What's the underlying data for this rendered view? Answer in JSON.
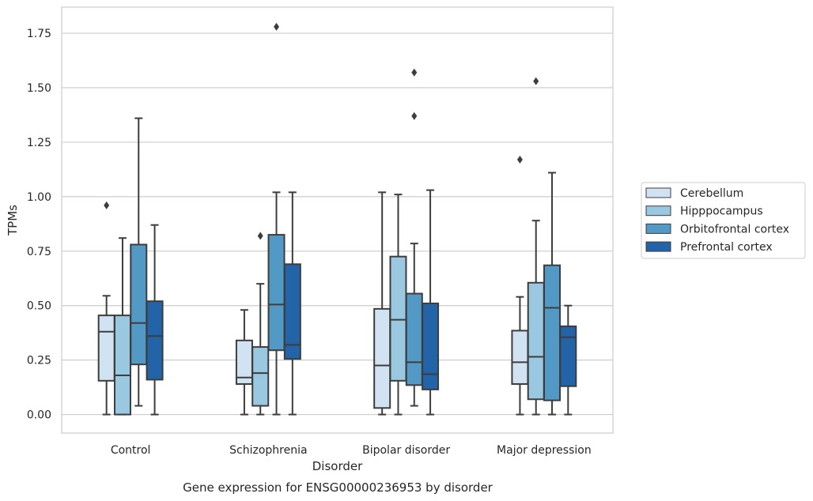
{
  "chart_data": {
    "type": "boxplot",
    "title": "",
    "caption": "Gene expression for ENSG00000236953 by disorder",
    "xlabel": "Disorder",
    "ylabel": "TPMs",
    "ylim": [
      -0.085,
      1.87
    ],
    "yticks": [
      0.0,
      0.25,
      0.5,
      0.75,
      1.0,
      1.25,
      1.5,
      1.75
    ],
    "ytick_labels": [
      "0.00",
      "0.25",
      "0.50",
      "0.75",
      "1.00",
      "1.25",
      "1.50",
      "1.75"
    ],
    "grid": "horizontal",
    "legend_position": "right",
    "categories": [
      "Control",
      "Schizophrenia",
      "Bipolar disorder",
      "Major depression"
    ],
    "series": [
      {
        "name": "Cerebellum",
        "color": "#d1e2f2",
        "boxes": [
          {
            "whislo": 0.0,
            "q1": 0.155,
            "med": 0.38,
            "q3": 0.455,
            "whishi": 0.545,
            "fliers": [
              0.96
            ]
          },
          {
            "whislo": 0.0,
            "q1": 0.14,
            "med": 0.17,
            "q3": 0.34,
            "whishi": 0.48,
            "fliers": []
          },
          {
            "whislo": 0.0,
            "q1": 0.03,
            "med": 0.225,
            "q3": 0.485,
            "whishi": 1.02,
            "fliers": []
          },
          {
            "whislo": 0.0,
            "q1": 0.14,
            "med": 0.24,
            "q3": 0.385,
            "whishi": 0.54,
            "fliers": [
              1.17
            ]
          }
        ]
      },
      {
        "name": "Hipppocampus",
        "color": "#9ac8e1",
        "boxes": [
          {
            "whislo": 0.0,
            "q1": 0.0,
            "med": 0.18,
            "q3": 0.455,
            "whishi": 0.81,
            "fliers": []
          },
          {
            "whislo": 0.0,
            "q1": 0.04,
            "med": 0.19,
            "q3": 0.31,
            "whishi": 0.6,
            "fliers": [
              0.82
            ]
          },
          {
            "whislo": 0.0,
            "q1": 0.155,
            "med": 0.435,
            "q3": 0.725,
            "whishi": 1.01,
            "fliers": []
          },
          {
            "whislo": 0.0,
            "q1": 0.07,
            "med": 0.265,
            "q3": 0.605,
            "whishi": 0.89,
            "fliers": [
              1.53
            ]
          }
        ]
      },
      {
        "name": "Orbitofrontal cortex",
        "color": "#5399c6",
        "boxes": [
          {
            "whislo": 0.04,
            "q1": 0.23,
            "med": 0.42,
            "q3": 0.78,
            "whishi": 1.36,
            "fliers": []
          },
          {
            "whislo": 0.0,
            "q1": 0.295,
            "med": 0.505,
            "q3": 0.825,
            "whishi": 1.02,
            "fliers": [
              1.78
            ]
          },
          {
            "whislo": 0.04,
            "q1": 0.135,
            "med": 0.24,
            "q3": 0.555,
            "whishi": 0.785,
            "fliers": [
              1.37,
              1.57
            ]
          },
          {
            "whislo": 0.0,
            "q1": 0.065,
            "med": 0.49,
            "q3": 0.685,
            "whishi": 1.11,
            "fliers": []
          }
        ]
      },
      {
        "name": "Prefrontal cortex",
        "color": "#2363a7",
        "boxes": [
          {
            "whislo": 0.0,
            "q1": 0.16,
            "med": 0.36,
            "q3": 0.52,
            "whishi": 0.87,
            "fliers": []
          },
          {
            "whislo": 0.0,
            "q1": 0.255,
            "med": 0.32,
            "q3": 0.69,
            "whishi": 1.02,
            "fliers": []
          },
          {
            "whislo": 0.0,
            "q1": 0.115,
            "med": 0.185,
            "q3": 0.51,
            "whishi": 1.03,
            "fliers": []
          },
          {
            "whislo": 0.0,
            "q1": 0.13,
            "med": 0.355,
            "q3": 0.405,
            "whishi": 0.5,
            "fliers": []
          }
        ]
      }
    ]
  }
}
